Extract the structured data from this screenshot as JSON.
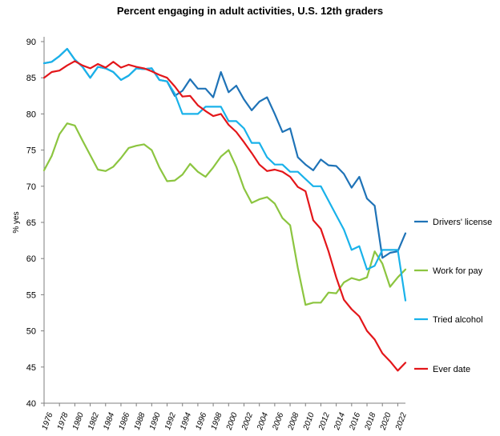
{
  "chart_data": {
    "type": "line",
    "title": "Percent engaging in adult activities, U.S. 12th graders",
    "xlabel": "",
    "ylabel": "% yes",
    "ylim": [
      40,
      90
    ],
    "yticks": [
      40,
      45,
      50,
      55,
      60,
      65,
      70,
      75,
      80,
      85,
      90
    ],
    "x": [
      1976,
      1977,
      1978,
      1979,
      1980,
      1981,
      1982,
      1983,
      1984,
      1985,
      1986,
      1987,
      1988,
      1989,
      1990,
      1991,
      1992,
      1993,
      1994,
      1995,
      1996,
      1997,
      1998,
      1999,
      2000,
      2001,
      2002,
      2003,
      2004,
      2005,
      2006,
      2007,
      2008,
      2009,
      2010,
      2011,
      2012,
      2013,
      2014,
      2015,
      2016,
      2017,
      2018,
      2019,
      2020,
      2021,
      2022,
      2023
    ],
    "xticks": [
      1976,
      1978,
      1980,
      1982,
      1984,
      1986,
      1988,
      1990,
      1992,
      1994,
      1996,
      1998,
      2000,
      2002,
      2004,
      2006,
      2008,
      2010,
      2012,
      2014,
      2016,
      2018,
      2020,
      2022
    ],
    "grid": false,
    "legend_position": "right",
    "series": [
      {
        "name": "Drivers' license",
        "color": "#1f73b7",
        "values": [
          87.0,
          87.2,
          88.0,
          89.0,
          87.5,
          86.5,
          85.0,
          86.5,
          86.3,
          85.8,
          84.7,
          85.3,
          86.3,
          86.2,
          86.3,
          84.7,
          84.5,
          82.5,
          83.2,
          84.8,
          83.5,
          83.5,
          82.3,
          85.8,
          83.0,
          83.9,
          82.0,
          80.5,
          81.7,
          82.3,
          80.0,
          77.5,
          78.0,
          74.0,
          73.0,
          72.2,
          73.7,
          72.9,
          72.8,
          71.7,
          69.8,
          71.3,
          68.3,
          67.3,
          60.1,
          60.8,
          61.0,
          63.5
        ]
      },
      {
        "name": "Work for pay",
        "color": "#8cc540",
        "values": [
          72.2,
          74.2,
          77.2,
          78.7,
          78.4,
          76.3,
          74.3,
          72.3,
          72.1,
          72.7,
          73.9,
          75.3,
          75.6,
          75.8,
          75.0,
          72.6,
          70.7,
          70.8,
          71.6,
          73.1,
          72.0,
          71.3,
          72.6,
          74.1,
          75.0,
          72.7,
          69.7,
          67.7,
          68.2,
          68.5,
          67.6,
          65.6,
          64.6,
          58.7,
          53.6,
          53.9,
          53.9,
          55.3,
          55.2,
          56.7,
          57.3,
          57.0,
          57.4,
          61.0,
          59.3,
          56.1,
          57.4,
          58.5
        ]
      },
      {
        "name": "Tried alcohol",
        "color": "#19b2ea",
        "values": [
          87.0,
          87.2,
          88.0,
          89.0,
          87.5,
          86.5,
          85.0,
          86.5,
          86.3,
          85.8,
          84.7,
          85.3,
          86.3,
          86.2,
          86.3,
          84.7,
          84.5,
          82.8,
          80.0,
          80.0,
          80.0,
          81.0,
          81.0,
          81.0,
          79.0,
          79.0,
          78.0,
          76.0,
          76.0,
          74.0,
          73.0,
          73.0,
          72.0,
          72.0,
          71.0,
          70.0,
          70.0,
          68.0,
          66.0,
          64.0,
          61.2,
          61.7,
          58.5,
          59.0,
          61.2,
          61.2,
          61.2,
          54.2
        ]
      },
      {
        "name": "Ever date",
        "color": "#e3161a",
        "values": [
          85.0,
          85.8,
          86.0,
          86.7,
          87.3,
          86.7,
          86.3,
          86.9,
          86.4,
          87.2,
          86.4,
          86.8,
          86.5,
          86.3,
          85.9,
          85.4,
          85.0,
          83.8,
          82.4,
          82.5,
          81.2,
          80.4,
          79.7,
          80.0,
          78.5,
          77.5,
          76.1,
          74.6,
          73.0,
          72.1,
          72.3,
          72.0,
          71.3,
          69.9,
          69.3,
          65.3,
          64.1,
          61.0,
          57.4,
          54.3,
          53.0,
          52.0,
          50.0,
          48.8,
          46.9,
          45.8,
          44.5,
          45.6
        ]
      }
    ]
  }
}
